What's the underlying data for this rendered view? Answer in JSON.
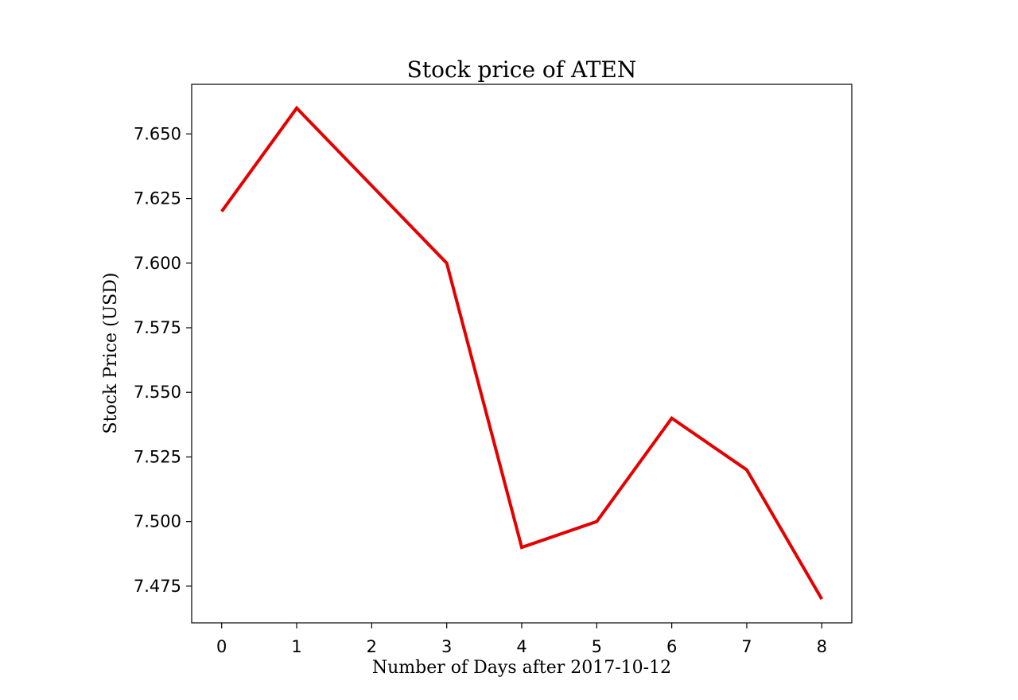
{
  "chart_data": {
    "type": "line",
    "title": "Stock price of ATEN",
    "xlabel": "Number of Days after 2017-10-12",
    "ylabel": "Stock Price (USD)",
    "x": [
      0,
      1,
      2,
      3,
      4,
      5,
      6,
      7,
      8
    ],
    "xlim": [
      -0.4,
      8.4
    ],
    "ylim": [
      7.4608,
      7.6692
    ],
    "x_ticks": [
      0,
      1,
      2,
      3,
      4,
      5,
      6,
      7,
      8
    ],
    "x_tick_labels": [
      "0",
      "1",
      "2",
      "3",
      "4",
      "5",
      "6",
      "7",
      "8"
    ],
    "y_ticks": [
      7.475,
      7.5,
      7.525,
      7.55,
      7.575,
      7.6,
      7.625,
      7.65
    ],
    "y_tick_labels": [
      "7.475",
      "7.500",
      "7.525",
      "7.550",
      "7.575",
      "7.600",
      "7.625",
      "7.650"
    ],
    "grid": false,
    "series": [
      {
        "color": "#e50000",
        "values": [
          7.62,
          7.66,
          7.63,
          7.6,
          7.49,
          7.5,
          7.54,
          7.52,
          7.47
        ]
      }
    ]
  }
}
